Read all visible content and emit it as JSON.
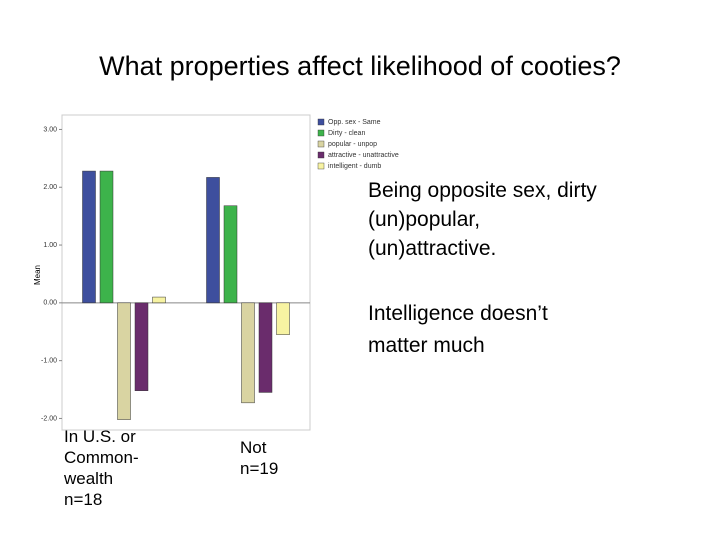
{
  "chart_data": {
    "type": "bar",
    "title": "What properties affect likelihood of cooties?",
    "y_label": "Mean",
    "categories": [
      "In U.S. or\nCommon-\nwealth\nn=18",
      "Not\nn=19"
    ],
    "series": [
      {
        "name": "Opp. sex - Same",
        "color": "#3e4f9e",
        "values": [
          2.28,
          2.17
        ]
      },
      {
        "name": "Dirty - clean",
        "color": "#3db34b",
        "values": [
          2.28,
          1.68
        ]
      },
      {
        "name": "popular - unpop",
        "color": "#d9d4a2",
        "values": [
          -2.02,
          -1.73
        ]
      },
      {
        "name": "attractive - unattractive",
        "color": "#6a2c6c",
        "values": [
          -1.52,
          -1.55
        ]
      },
      {
        "name": "intelligent - dumb",
        "color": "#f7f3a2",
        "values": [
          0.1,
          -0.55
        ]
      }
    ],
    "ylim": [
      -2.2,
      3.25
    ],
    "yticks": [
      {
        "value": -2,
        "label": "-2.00"
      },
      {
        "value": -1,
        "label": "-1.00"
      },
      {
        "value": 0,
        "label": "0.00"
      },
      {
        "value": 1,
        "label": "1.00"
      },
      {
        "value": 2,
        "label": "2.00"
      },
      {
        "value": 3,
        "label": "3.00"
      }
    ],
    "annotations": [
      "Being opposite sex, dirty\n(un)popular,\n(un)attractive.",
      "Intelligence doesn’t\nmatter much"
    ]
  }
}
